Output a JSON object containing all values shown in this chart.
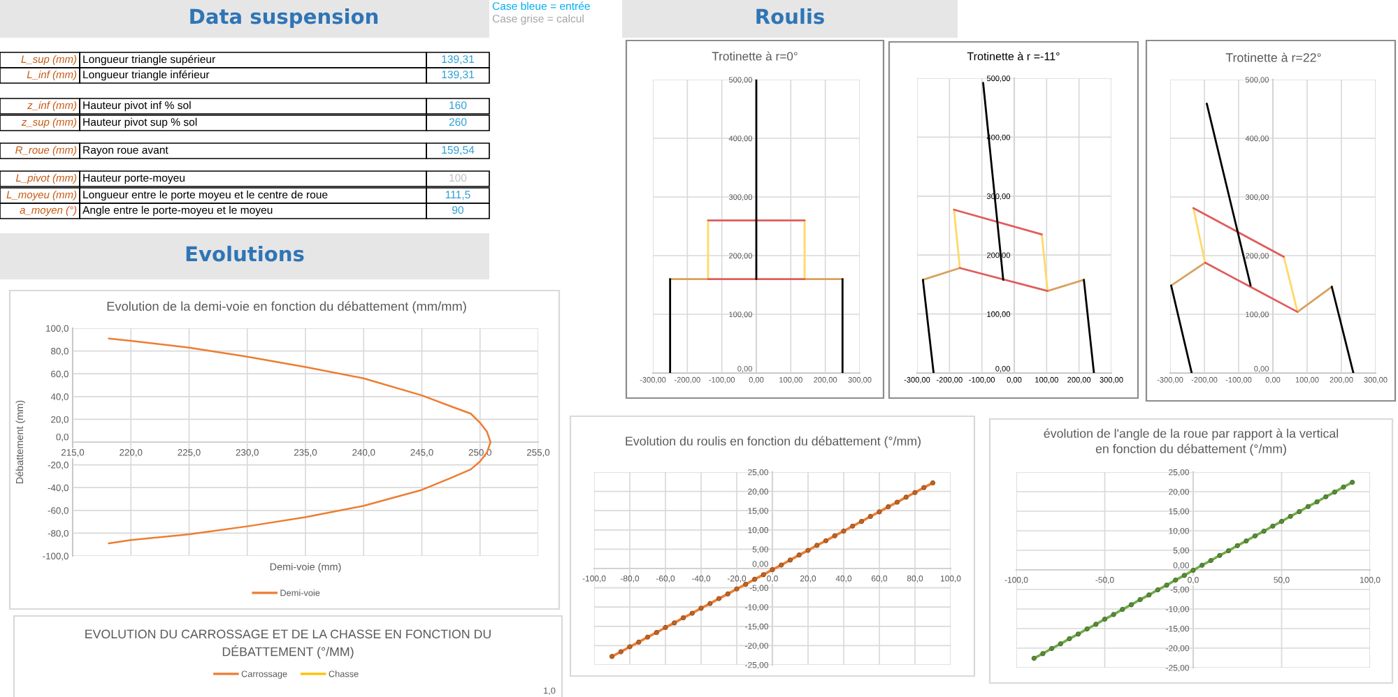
{
  "chart_data": [
    {
      "type": "other",
      "title": "Data suspension",
      "annotations": [
        "L_sup (mm)",
        "Longueur triangle supérieur",
        "139,31",
        "L_inf (mm)",
        "Longueur triangle inférieur",
        "139,31",
        "z_inf (mm)",
        "Hauteur pivot inf % sol",
        "160",
        "z_sup (mm)",
        "Hauteur pivot sup % sol",
        "260",
        "R_roue (mm)",
        "Rayon roue avant",
        "159,54",
        "L_pivot (mm)",
        "Hauteur porte-moyeu",
        "100",
        "L_moyeu (mm)",
        "Longueur entre le porte moyeu et le centre de roue",
        "111,5",
        "a_moyen (°)",
        "Angle entre le porte-moyeu et le moyeu",
        "90"
      ],
      "colors": [
        "#c65911",
        "#000000",
        "#2e9fd6",
        "#c65911",
        "#000000",
        "#2e9fd6",
        "#c65911",
        "#000000",
        "#2e9fd6",
        "#c65911",
        "#000000",
        "#2e9fd6",
        "#c65911",
        "#000000",
        "#2e9fd6",
        "#c65911",
        "#000000",
        "#bfbfbf",
        "#c65911",
        "#000000",
        "#2e9fd6",
        "#c65911",
        "#000000",
        "#2e9fd6"
      ]
    },
    {
      "type": "other",
      "annotations": [
        "Case bleue = entrée",
        "Case grise = calcul"
      ],
      "colors": [
        "#00b0f0",
        "#a6a6a6"
      ]
    },
    {
      "type": "other",
      "title": "Roulis"
    },
    {
      "type": "line",
      "title": "Trotinette à r=0°",
      "series": [
        {
          "color": "#d9a05b",
          "x": [
            -250,
            -140
          ],
          "values": [
            160,
            160
          ]
        },
        {
          "color": "#d9a05b",
          "x": [
            140,
            250
          ],
          "values": [
            160,
            160
          ]
        },
        {
          "color": "#ffd966",
          "x": [
            -140,
            -140
          ],
          "values": [
            160,
            260
          ]
        },
        {
          "color": "#ffd966",
          "x": [
            140,
            140
          ],
          "values": [
            160,
            260
          ]
        },
        {
          "color": "#e05c5c",
          "x": [
            -140,
            140
          ],
          "values": [
            160,
            160
          ]
        },
        {
          "color": "#e05c5c",
          "x": [
            -140,
            140
          ],
          "values": [
            260,
            260
          ]
        },
        {
          "color": "#000000",
          "x": [
            0,
            0
          ],
          "values": [
            160,
            500
          ]
        },
        {
          "color": "#000000",
          "x": [
            -250,
            -250
          ],
          "values": [
            0,
            160
          ]
        },
        {
          "color": "#000000",
          "x": [
            250,
            250
          ],
          "values": [
            0,
            160
          ]
        }
      ],
      "xlim": [
        -300,
        300
      ],
      "xticks": [
        {
          "value": -300,
          "label": "-300,00"
        },
        {
          "value": -200,
          "label": "-200,00"
        },
        {
          "value": -100,
          "label": "-100,00"
        },
        {
          "value": 0,
          "label": "0,00"
        },
        {
          "value": 100,
          "label": "100,00"
        },
        {
          "value": 200,
          "label": "200,00"
        },
        {
          "value": 300,
          "label": "300,00"
        }
      ],
      "ylim": [
        0,
        500
      ],
      "yticks": [
        {
          "value": 0,
          "label": "0,00"
        },
        {
          "value": 100,
          "label": "100,00"
        },
        {
          "value": 200,
          "label": "200,00"
        },
        {
          "value": 300,
          "label": "300,00"
        },
        {
          "value": 400,
          "label": "400,00"
        },
        {
          "value": 500,
          "label": "500,00"
        }
      ],
      "grid": true
    },
    {
      "type": "line",
      "title": "Trotinette à r =-11°",
      "series": [
        {
          "color": "#d9a05b",
          "x": [
            -282,
            -168
          ],
          "values": [
            158,
            178
          ]
        },
        {
          "color": "#d9a05b",
          "x": [
            103,
            215
          ],
          "values": [
            139,
            158
          ]
        },
        {
          "color": "#ffd966",
          "x": [
            -186,
            -168
          ],
          "values": [
            277,
            178
          ]
        },
        {
          "color": "#ffd966",
          "x": [
            85,
            103
          ],
          "values": [
            235,
            139
          ]
        },
        {
          "color": "#e05c5c",
          "x": [
            -168,
            103
          ],
          "values": [
            178,
            139
          ]
        },
        {
          "color": "#e05c5c",
          "x": [
            -186,
            85
          ],
          "values": [
            277,
            235
          ]
        },
        {
          "color": "#000000",
          "x": [
            -34,
            -96
          ],
          "values": [
            158,
            492
          ]
        },
        {
          "color": "#000000",
          "x": [
            -282,
            -249
          ],
          "values": [
            158,
            0
          ]
        },
        {
          "color": "#000000",
          "x": [
            215,
            246
          ],
          "values": [
            158,
            0
          ]
        }
      ],
      "xlim": [
        -300,
        300
      ],
      "xticks": [
        {
          "value": -300,
          "label": "-300,00"
        },
        {
          "value": -200,
          "label": "-200,00"
        },
        {
          "value": -100,
          "label": "-100,00"
        },
        {
          "value": 0,
          "label": "0,00"
        },
        {
          "value": 100,
          "label": "100,00"
        },
        {
          "value": 200,
          "label": "200,00"
        },
        {
          "value": 300,
          "label": "300,00"
        }
      ],
      "ylim": [
        0,
        500
      ],
      "yticks": [
        {
          "value": 0,
          "label": "0,00"
        },
        {
          "value": 100,
          "label": "100,00"
        },
        {
          "value": 200,
          "label": "200,00"
        },
        {
          "value": 300,
          "label": "300,00"
        },
        {
          "value": 400,
          "label": "400,00"
        },
        {
          "value": 500,
          "label": "500,00"
        }
      ],
      "grid": true
    },
    {
      "type": "line",
      "title": "Trotinette à r=22°",
      "series": [
        {
          "color": "#d9a05b",
          "x": [
            -297,
            -198
          ],
          "values": [
            149,
            188
          ]
        },
        {
          "color": "#d9a05b",
          "x": [
            72,
            172
          ],
          "values": [
            104,
            147
          ]
        },
        {
          "color": "#ffd966",
          "x": [
            -232,
            -198
          ],
          "values": [
            281,
            188
          ]
        },
        {
          "color": "#ffd966",
          "x": [
            32,
            72
          ],
          "values": [
            198,
            104
          ]
        },
        {
          "color": "#e05c5c",
          "x": [
            -198,
            72
          ],
          "values": [
            188,
            104
          ]
        },
        {
          "color": "#e05c5c",
          "x": [
            -232,
            32
          ],
          "values": [
            281,
            198
          ]
        },
        {
          "color": "#000000",
          "x": [
            -65,
            -193
          ],
          "values": [
            149,
            459
          ]
        },
        {
          "color": "#000000",
          "x": [
            -297,
            -237
          ],
          "values": [
            149,
            0
          ]
        },
        {
          "color": "#000000",
          "x": [
            172,
            235
          ],
          "values": [
            147,
            0
          ]
        }
      ],
      "xlim": [
        -300,
        300
      ],
      "xticks": [
        {
          "value": -300,
          "label": "-300,00"
        },
        {
          "value": -200,
          "label": "-200,00"
        },
        {
          "value": -100,
          "label": "-100,00"
        },
        {
          "value": 0,
          "label": "0,00"
        },
        {
          "value": 100,
          "label": "100,00"
        },
        {
          "value": 200,
          "label": "200,00"
        },
        {
          "value": 300,
          "label": "300,00"
        }
      ],
      "ylim": [
        0,
        500
      ],
      "yticks": [
        {
          "value": 0,
          "label": "0,00"
        },
        {
          "value": 100,
          "label": "100,00"
        },
        {
          "value": 200,
          "label": "200,00"
        },
        {
          "value": 300,
          "label": "300,00"
        },
        {
          "value": 400,
          "label": "400,00"
        },
        {
          "value": 500,
          "label": "500,00"
        }
      ],
      "grid": true
    },
    {
      "type": "other",
      "title": "Evolutions"
    },
    {
      "type": "line",
      "title": "Evolution de la demi-voie en fonction du débattement (mm/mm)",
      "xlabel": "Demi-voie (mm)",
      "ylabel": "Débattement (mm)",
      "series": [
        {
          "name": "Demi-voie",
          "color": "#ed7d31",
          "x": [
            218.1,
            220.0,
            225.0,
            230.0,
            235.0,
            240.0,
            245.0,
            247.6,
            249.2,
            250.0,
            250.6,
            250.9,
            250.6,
            250.0,
            249.2,
            247.6,
            245.0,
            240.0,
            235.0,
            230.0,
            225.0,
            220.0,
            218.1
          ],
          "values": [
            91,
            89,
            83,
            75,
            66,
            56,
            41,
            31,
            25,
            17,
            9,
            0,
            -9,
            -17,
            -24,
            -31,
            -42,
            -56,
            -66,
            -74,
            -81,
            -86,
            -89
          ]
        }
      ],
      "xlim": [
        215,
        255
      ],
      "xticks": [
        {
          "value": 215,
          "label": "215,0"
        },
        {
          "value": 220,
          "label": "220,0"
        },
        {
          "value": 225,
          "label": "225,0"
        },
        {
          "value": 230,
          "label": "230,0"
        },
        {
          "value": 235,
          "label": "235,0"
        },
        {
          "value": 240,
          "label": "240,0"
        },
        {
          "value": 245,
          "label": "245,0"
        },
        {
          "value": 250,
          "label": "250,0"
        },
        {
          "value": 255,
          "label": "255,0"
        }
      ],
      "ylim": [
        -100,
        100
      ],
      "yticks": [
        {
          "value": -100,
          "label": "-100,0"
        },
        {
          "value": -80,
          "label": "-80,0"
        },
        {
          "value": -60,
          "label": "-60,0"
        },
        {
          "value": -40,
          "label": "-40,0"
        },
        {
          "value": -20,
          "label": "-20,0"
        },
        {
          "value": 0,
          "label": "0,0"
        },
        {
          "value": 20,
          "label": "20,0"
        },
        {
          "value": 40,
          "label": "40,0"
        },
        {
          "value": 60,
          "label": "60,0"
        },
        {
          "value": 80,
          "label": "80,0"
        },
        {
          "value": 100,
          "label": "100,0"
        }
      ],
      "grid": true,
      "legend": "bottom"
    },
    {
      "type": "line",
      "title": "Evolution du roulis en fonction du débattement (°/mm)",
      "x": [
        -90,
        -85,
        -80,
        -75,
        -70,
        -65,
        -60,
        -55,
        -50,
        -45,
        -40,
        -35,
        -30,
        -25,
        -20,
        -15,
        -10,
        -5,
        0,
        5,
        10,
        15,
        20,
        25,
        30,
        35,
        40,
        45,
        50,
        55,
        60,
        65,
        70,
        75,
        80,
        85,
        90
      ],
      "series": [
        {
          "color": "#ed7d31",
          "values": [
            -22.8,
            -21.6,
            -20.3,
            -19.1,
            -17.8,
            -16.6,
            -15.3,
            -14.1,
            -12.8,
            -11.6,
            -10.3,
            -9.1,
            -7.8,
            -6.6,
            -5.3,
            -4.1,
            -2.8,
            -1.6,
            -0.3,
            0.9,
            2.2,
            3.5,
            4.7,
            6.0,
            7.2,
            8.5,
            9.7,
            11.0,
            12.2,
            13.5,
            14.7,
            16.0,
            17.2,
            18.5,
            19.7,
            21.0,
            22.2
          ]
        }
      ],
      "xlim": [
        -100,
        100
      ],
      "xticks": [
        {
          "value": -100,
          "label": "-100,0"
        },
        {
          "value": -80,
          "label": "-80,0"
        },
        {
          "value": -60,
          "label": "-60,0"
        },
        {
          "value": -40,
          "label": "-40,0"
        },
        {
          "value": -20,
          "label": "-20,0"
        },
        {
          "value": 0,
          "label": "0,0"
        },
        {
          "value": 20,
          "label": "20,0"
        },
        {
          "value": 40,
          "label": "40,0"
        },
        {
          "value": 60,
          "label": "60,0"
        },
        {
          "value": 80,
          "label": "80,0"
        },
        {
          "value": 100,
          "label": "100,0"
        }
      ],
      "ylim": [
        -25,
        25
      ],
      "yticks": [
        {
          "value": -25,
          "label": "-25,00"
        },
        {
          "value": -20,
          "label": "-20,00"
        },
        {
          "value": -15,
          "label": "-15,00"
        },
        {
          "value": -10,
          "label": "-10,00"
        },
        {
          "value": -5,
          "label": "-5,00"
        },
        {
          "value": 0,
          "label": "0,00"
        },
        {
          "value": 5,
          "label": "5,00"
        },
        {
          "value": 10,
          "label": "10,00"
        },
        {
          "value": 15,
          "label": "15,00"
        },
        {
          "value": 20,
          "label": "20,00"
        },
        {
          "value": 25,
          "label": "25,00"
        }
      ],
      "grid": true,
      "marker": "circle"
    },
    {
      "type": "line",
      "title": "évolution de l'angle de la roue par rapport à la vertical en fonction du débattement (°/mm)",
      "x": [
        -90,
        -85,
        -80,
        -75,
        -70,
        -65,
        -60,
        -55,
        -50,
        -45,
        -40,
        -35,
        -30,
        -25,
        -20,
        -15,
        -10,
        -5,
        0,
        5,
        10,
        15,
        20,
        25,
        30,
        35,
        40,
        45,
        50,
        55,
        60,
        65,
        70,
        75,
        80,
        85,
        90
      ],
      "series": [
        {
          "color": "#70ad47",
          "values": [
            -22.6,
            -21.4,
            -20.1,
            -18.9,
            -17.6,
            -16.4,
            -15.1,
            -13.9,
            -12.6,
            -11.4,
            -10.1,
            -8.9,
            -7.6,
            -6.4,
            -5.1,
            -3.9,
            -2.6,
            -1.4,
            -0.1,
            1.2,
            2.4,
            3.7,
            4.9,
            6.2,
            7.4,
            8.7,
            9.9,
            11.2,
            12.4,
            13.7,
            14.9,
            16.2,
            17.4,
            18.7,
            19.9,
            21.2,
            22.4
          ]
        }
      ],
      "xlim": [
        -100,
        100
      ],
      "xticks": [
        {
          "value": -100,
          "label": "-100,0"
        },
        {
          "value": -50,
          "label": "-50,0"
        },
        {
          "value": 0,
          "label": "0,0"
        },
        {
          "value": 50,
          "label": "50,0"
        },
        {
          "value": 100,
          "label": "100,0"
        }
      ],
      "ylim": [
        -25,
        25
      ],
      "yticks": [
        {
          "value": -25,
          "label": "-25,00"
        },
        {
          "value": -20,
          "label": "-20,00"
        },
        {
          "value": -15,
          "label": "-15,00"
        },
        {
          "value": -10,
          "label": "-10,00"
        },
        {
          "value": -5,
          "label": "-5,00"
        },
        {
          "value": 0,
          "label": "0,00"
        },
        {
          "value": 5,
          "label": "5,00"
        },
        {
          "value": 10,
          "label": "10,00"
        },
        {
          "value": 15,
          "label": "15,00"
        },
        {
          "value": 20,
          "label": "20,00"
        },
        {
          "value": 25,
          "label": "25,00"
        }
      ],
      "grid": true,
      "marker": "circle"
    },
    {
      "type": "other",
      "title": "EVOLUTION DU CARROSSAGE ET DE LA CHASSE EN FONCTION DU DÉBATTEMENT (°/MM)",
      "series": [
        {
          "name": "Carrossage",
          "color": "#ed7d31"
        },
        {
          "name": "Chasse",
          "color": "#ffc000"
        }
      ],
      "legend": "top",
      "annotations": [
        "1,0"
      ]
    }
  ]
}
